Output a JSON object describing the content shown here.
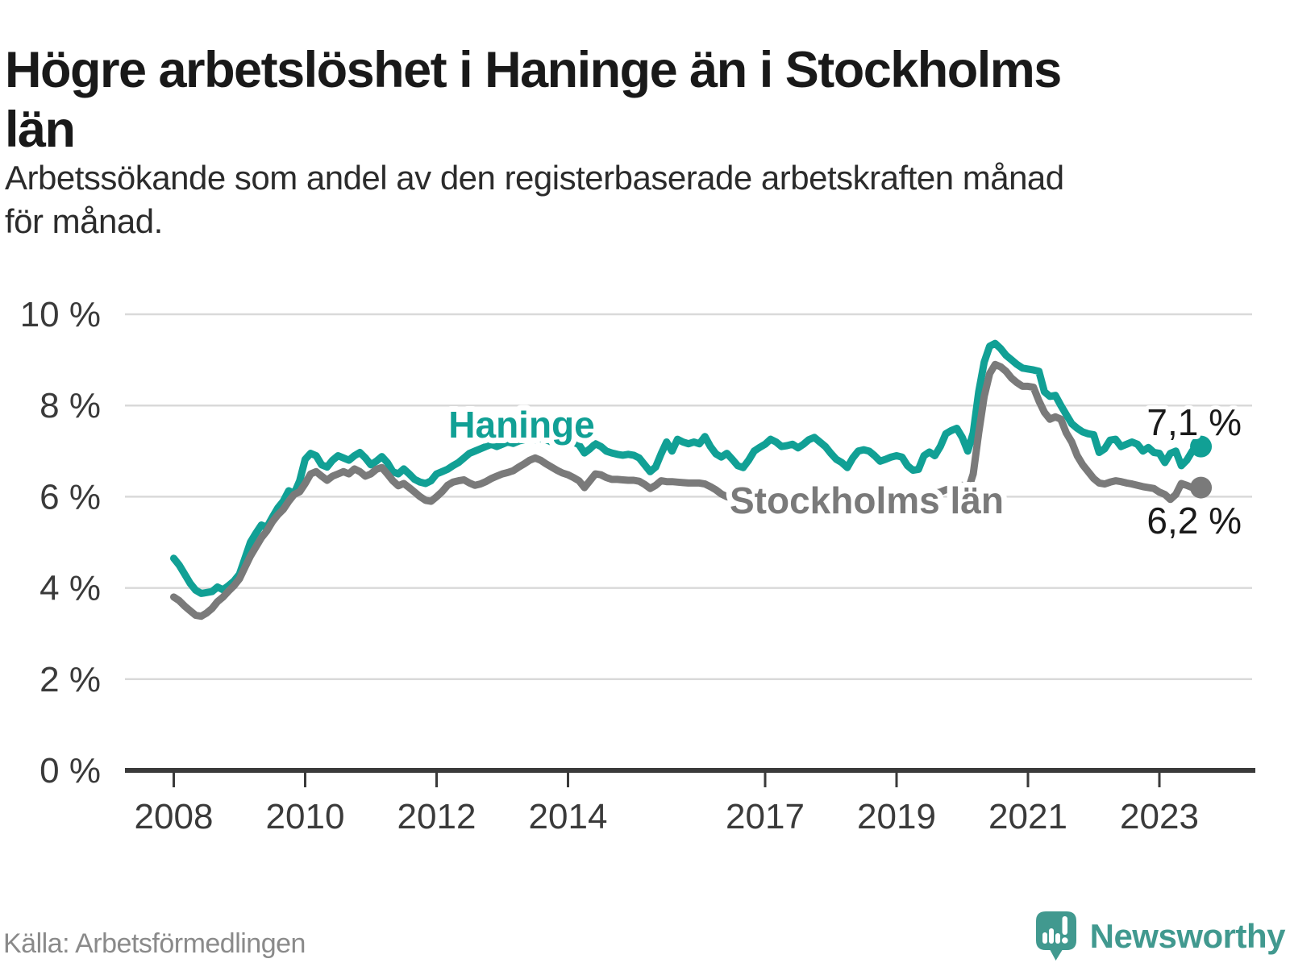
{
  "page": {
    "source_label": "Källa: Arbetsförmedlingen",
    "logo_text": "Newsworthy",
    "logo_color": "#41998f"
  },
  "chart_data": {
    "type": "line",
    "title_lines": [
      "Högre arbetslöshet i Haninge än i Stockholms",
      "län"
    ],
    "subtitle_lines": [
      "Arbetssökande som andel av den registerbaserade arbetskraften månad",
      "för månad."
    ],
    "source": "Källa: Arbetsförmedlingen",
    "x_unit": "month",
    "start": "2008-01",
    "end": "2023-08",
    "ylim": [
      0,
      10
    ],
    "grid": true,
    "legend_position": "inline-labels",
    "y_ticks": [
      {
        "value": 0,
        "label": "0 %"
      },
      {
        "value": 2,
        "label": "2 %"
      },
      {
        "value": 4,
        "label": "4 %"
      },
      {
        "value": 6,
        "label": "6 %"
      },
      {
        "value": 8,
        "label": "8 %"
      },
      {
        "value": 10,
        "label": "10 %"
      }
    ],
    "x_ticks": [
      {
        "value": 2008,
        "label": "2008"
      },
      {
        "value": 2010,
        "label": "2010"
      },
      {
        "value": 2012,
        "label": "2012"
      },
      {
        "value": 2014,
        "label": "2014"
      },
      {
        "value": 2017,
        "label": "2017"
      },
      {
        "value": 2019,
        "label": "2019"
      },
      {
        "value": 2021,
        "label": "2021"
      },
      {
        "value": 2023,
        "label": "2023"
      }
    ],
    "series": [
      {
        "name": "Haninge",
        "color": "#11a095",
        "end_label": "7,1 %",
        "end_value": 7.1,
        "values": [
          4.65,
          4.5,
          4.3,
          4.1,
          3.95,
          3.88,
          3.9,
          3.92,
          4.02,
          3.96,
          4.05,
          4.15,
          4.3,
          4.65,
          5.0,
          5.2,
          5.38,
          5.33,
          5.55,
          5.75,
          5.9,
          6.13,
          6.07,
          6.35,
          6.82,
          6.95,
          6.9,
          6.7,
          6.65,
          6.8,
          6.9,
          6.85,
          6.8,
          6.9,
          6.97,
          6.85,
          6.7,
          6.78,
          6.88,
          6.75,
          6.55,
          6.5,
          6.61,
          6.5,
          6.38,
          6.32,
          6.29,
          6.35,
          6.5,
          6.55,
          6.6,
          6.68,
          6.75,
          6.85,
          6.95,
          7.0,
          7.05,
          7.1,
          7.15,
          7.1,
          7.15,
          7.2,
          7.17,
          7.22,
          7.25,
          7.3,
          7.25,
          7.28,
          7.25,
          7.2,
          7.22,
          7.2,
          7.18,
          7.2,
          7.14,
          6.96,
          7.05,
          7.16,
          7.1,
          7.0,
          6.96,
          6.93,
          6.91,
          6.93,
          6.91,
          6.85,
          6.7,
          6.55,
          6.65,
          6.94,
          7.2,
          7.0,
          7.26,
          7.2,
          7.16,
          7.2,
          7.16,
          7.32,
          7.1,
          6.94,
          6.87,
          6.95,
          6.82,
          6.68,
          6.64,
          6.8,
          7.0,
          7.08,
          7.15,
          7.26,
          7.2,
          7.1,
          7.12,
          7.15,
          7.07,
          7.15,
          7.25,
          7.3,
          7.2,
          7.1,
          6.95,
          6.82,
          6.75,
          6.64,
          6.85,
          7.0,
          7.03,
          7.0,
          6.9,
          6.78,
          6.82,
          6.87,
          6.9,
          6.87,
          6.68,
          6.58,
          6.6,
          6.9,
          6.98,
          6.9,
          7.1,
          7.38,
          7.45,
          7.5,
          7.3,
          7.0,
          7.4,
          8.3,
          8.95,
          9.3,
          9.36,
          9.25,
          9.1,
          9.0,
          8.9,
          8.82,
          8.8,
          8.78,
          8.75,
          8.3,
          8.2,
          8.22,
          8.0,
          7.8,
          7.6,
          7.5,
          7.42,
          7.38,
          7.36,
          6.97,
          7.05,
          7.24,
          7.26,
          7.1,
          7.15,
          7.2,
          7.15,
          7.0,
          7.08,
          6.97,
          6.95,
          6.75,
          6.95,
          7.0,
          6.68,
          6.8,
          7.0,
          7.1
        ]
      },
      {
        "name": "Stockholms län",
        "color": "#7a7a7a",
        "end_label": "6,2 %",
        "end_value": 6.2,
        "values": [
          3.8,
          3.72,
          3.6,
          3.5,
          3.4,
          3.38,
          3.45,
          3.55,
          3.7,
          3.8,
          3.93,
          4.05,
          4.2,
          4.45,
          4.7,
          4.9,
          5.1,
          5.25,
          5.45,
          5.6,
          5.72,
          5.9,
          6.05,
          6.11,
          6.29,
          6.5,
          6.55,
          6.45,
          6.36,
          6.45,
          6.5,
          6.55,
          6.5,
          6.61,
          6.55,
          6.45,
          6.5,
          6.6,
          6.64,
          6.5,
          6.35,
          6.24,
          6.29,
          6.2,
          6.1,
          6.0,
          5.92,
          5.9,
          6.0,
          6.11,
          6.25,
          6.32,
          6.35,
          6.37,
          6.3,
          6.25,
          6.28,
          6.33,
          6.4,
          6.45,
          6.5,
          6.53,
          6.57,
          6.65,
          6.72,
          6.8,
          6.85,
          6.8,
          6.72,
          6.65,
          6.58,
          6.52,
          6.48,
          6.42,
          6.35,
          6.2,
          6.35,
          6.5,
          6.48,
          6.42,
          6.38,
          6.38,
          6.37,
          6.36,
          6.36,
          6.34,
          6.27,
          6.18,
          6.25,
          6.35,
          6.33,
          6.33,
          6.32,
          6.31,
          6.3,
          6.3,
          6.3,
          6.28,
          6.22,
          6.15,
          6.06,
          6.0,
          5.98,
          5.96,
          5.95,
          5.94,
          5.93,
          5.92,
          5.9,
          5.88,
          5.86,
          5.85,
          5.86,
          5.88,
          5.9,
          5.88,
          5.86,
          5.85,
          5.86,
          5.88,
          5.9,
          5.92,
          5.9,
          5.88,
          5.9,
          5.95,
          6.0,
          5.98,
          5.95,
          5.92,
          5.95,
          6.0,
          6.05,
          6.02,
          6.0,
          5.98,
          6.0,
          6.05,
          6.1,
          6.08,
          6.1,
          6.15,
          6.18,
          6.2,
          6.25,
          6.12,
          6.5,
          7.4,
          8.2,
          8.7,
          8.9,
          8.85,
          8.75,
          8.6,
          8.5,
          8.42,
          8.42,
          8.4,
          8.1,
          7.85,
          7.7,
          7.75,
          7.7,
          7.4,
          7.2,
          6.9,
          6.7,
          6.55,
          6.4,
          6.3,
          6.28,
          6.32,
          6.35,
          6.33,
          6.3,
          6.28,
          6.25,
          6.22,
          6.2,
          6.18,
          6.1,
          6.05,
          5.94,
          6.05,
          6.29,
          6.25,
          6.2,
          6.2
        ]
      }
    ]
  }
}
